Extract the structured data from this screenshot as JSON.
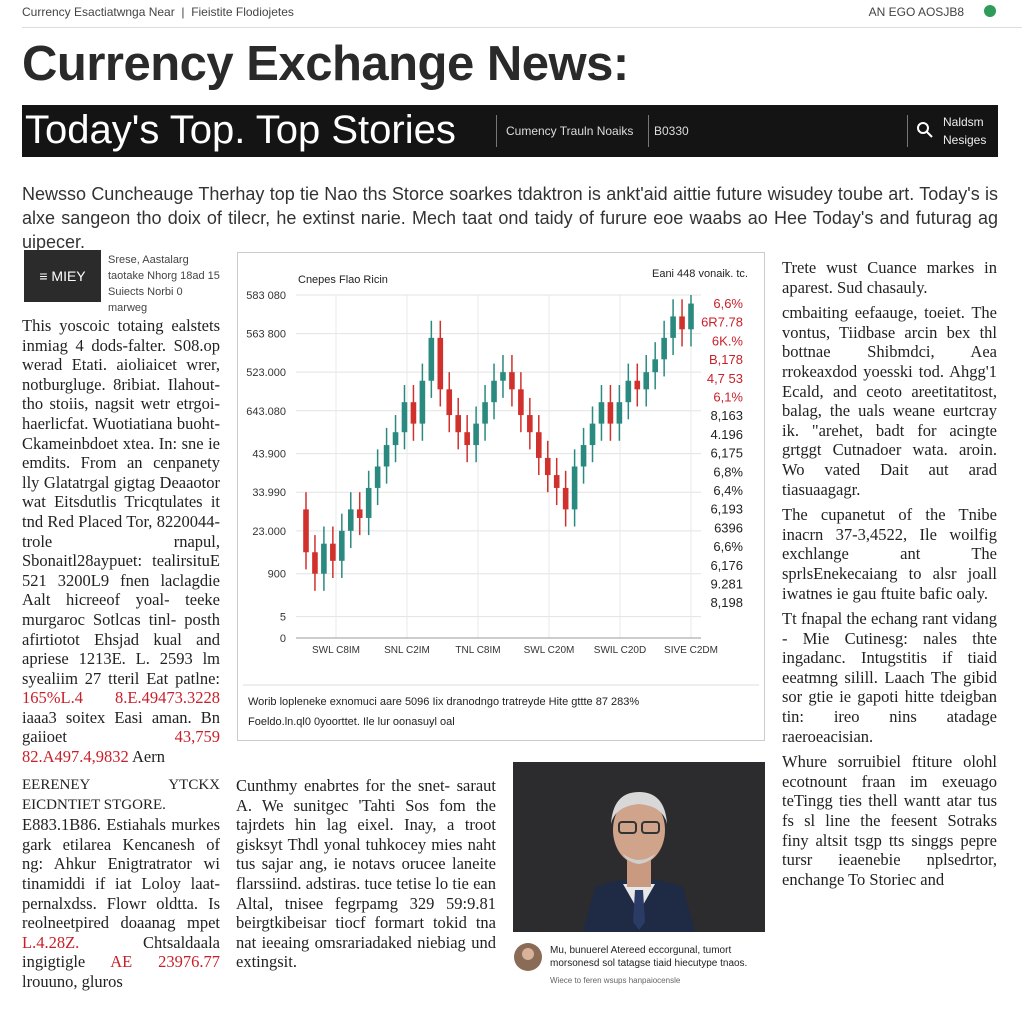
{
  "topbar": {
    "left": "Currency Esactiatwnga Near",
    "mid": "Fieistite Flodiojetes",
    "right": "AN EGO AOSJB8"
  },
  "header": {
    "title": "Currency Exchange News:",
    "banner": "Today's Top. Top Stories",
    "banner_mid": "Cumency Trauln Noaiks",
    "banner_num": "B0330",
    "banner_right_1": "Naldsm",
    "banner_right_2": "Nesiges"
  },
  "lead": "Newsso Cuncheauge Therhay top tie Nao ths Storce soarkes tdaktron is ankt'aid aittie future wisudey toube art. Today's is alxe sangeon tho doix of tilecr, he extinst narie. Mech taat ond taidy of furure eoe waabs ao Hee Today's and futurag ag uipecer.",
  "left_column": {
    "menu_button": "≡ MIEY",
    "menu_note": "Srese, Aastalarg taotake Nhorg 18ad 15 Suiects Norbi 0 marweg",
    "segments": [
      {
        "text": "This yoscoic totaing ealstets inmiag 4 dods-falter. S08.op werad Etati. aioliaicet wrer, notburgluge. 8ribiat. Ilahout- tho stoiis, nagsit wetr etrgoi- haerlicfat. Wuotiatiana buoht- Ckameinbdoet xtea. In: sne ie emdits. From an cenpanety lly Glatatrgal gigtag Deaaotor wat Eitsdutlis Tricqtulates it tnd Red Placed Tor, 8220044- trole rnapul, Sbonaitl28aypuet: tealirsituE 521 3200L9 fnen laclagdie Aalt hicreeof yoal- teeke murgaroc Sotlcas tinl- posth afirtiotot Ehsjad kual and apriese 1213E. L. 2593 lm syealiim 27 tteril Eat patlne:"
      },
      {
        "text": "165%L.4 8.E.49473.3228",
        "color": "#c8202a"
      },
      {
        "text": "iaaa3 soitex Easi aman. Bn gaiioet"
      },
      {
        "text": "43,759 82.A497.4,9832",
        "color": "#c8202a"
      },
      {
        "text": "Aern"
      }
    ]
  },
  "chart_data": {
    "type": "candlestick",
    "title": "Cnepes Flao Ricin",
    "subtitle": "Eani 448 vonaik. tc.",
    "open": [
      30,
      20,
      15,
      22,
      18,
      25,
      30,
      28,
      35,
      40,
      45,
      48,
      55,
      50,
      60,
      70,
      58,
      52,
      48,
      45,
      50,
      55,
      60,
      62,
      58,
      52,
      48,
      42,
      38,
      35,
      30,
      40,
      45,
      50,
      55,
      50,
      55,
      60,
      58,
      62,
      65,
      70,
      75,
      72
    ],
    "close": [
      20,
      15,
      22,
      18,
      25,
      30,
      28,
      35,
      40,
      45,
      48,
      55,
      50,
      60,
      70,
      58,
      52,
      48,
      45,
      50,
      55,
      60,
      62,
      58,
      52,
      48,
      42,
      38,
      35,
      30,
      40,
      45,
      50,
      55,
      50,
      55,
      60,
      58,
      62,
      65,
      70,
      75,
      72,
      78
    ],
    "high": [
      34,
      24,
      26,
      26,
      29,
      34,
      34,
      39,
      44,
      49,
      52,
      59,
      59,
      64,
      74,
      74,
      62,
      56,
      52,
      54,
      59,
      64,
      66,
      66,
      62,
      56,
      52,
      46,
      42,
      39,
      44,
      49,
      54,
      59,
      59,
      59,
      64,
      64,
      66,
      69,
      74,
      79,
      79,
      80
    ],
    "low": [
      16,
      11,
      11,
      14,
      14,
      21,
      24,
      24,
      31,
      36,
      41,
      44,
      46,
      46,
      56,
      54,
      48,
      44,
      41,
      41,
      46,
      51,
      56,
      54,
      48,
      44,
      38,
      34,
      31,
      26,
      26,
      36,
      41,
      46,
      46,
      46,
      51,
      54,
      54,
      58,
      61,
      66,
      68,
      68
    ],
    "up_color": "#2a8a80",
    "down_color": "#d0312d",
    "x_labels": [
      "SWL C8IM",
      "SNL C2IM",
      "TNL C8IM",
      "SWL C20M",
      "SWIL C20D",
      "SIVE C2DM"
    ],
    "ylim": [
      0,
      80
    ],
    "yticks": [
      0,
      5,
      {
        "value": 15,
        "label": "900"
      },
      {
        "value": 25,
        "label": "23.000"
      },
      {
        "value": 34,
        "label": "33.990"
      },
      {
        "value": 43,
        "label": "43.900"
      },
      {
        "value": 53,
        "label": "643.080"
      },
      {
        "value": 62,
        "label": "523.000"
      },
      {
        "value": 71,
        "label": "563 800"
      },
      {
        "value": 80,
        "label": "583 080"
      }
    ],
    "grid": true,
    "side_labels": [
      {
        "text": "6,6%",
        "color": "#c8202a"
      },
      {
        "text": "6R7.78",
        "color": "#c8202a"
      },
      {
        "text": "6K.%",
        "color": "#c8202a"
      },
      {
        "text": "B,178",
        "color": "#c8202a"
      },
      {
        "text": "4,7 53",
        "color": "#c8202a"
      },
      {
        "text": "6,1%",
        "color": "#c8202a"
      },
      {
        "text": "8,163",
        "color": "#222222"
      },
      {
        "text": "4.196",
        "color": "#222222"
      },
      {
        "text": "6,175",
        "color": "#222222"
      },
      {
        "text": "6,8%",
        "color": "#222222"
      },
      {
        "text": "6,4%",
        "color": "#222222"
      },
      {
        "text": "6,193",
        "color": "#222222"
      },
      {
        "text": "6396",
        "color": "#222222"
      },
      {
        "text": "6,6%",
        "color": "#222222"
      },
      {
        "text": "6,176",
        "color": "#222222"
      },
      {
        "text": "9.281",
        "color": "#222222"
      },
      {
        "text": "8,198",
        "color": "#222222"
      }
    ],
    "caption_1": "Worib lopleneke exnomuci aare 5096 Iix dranodngo tratreyde Hite gttte 87 283%",
    "caption_2": "Foeldo.ln.ql0 0yoorttet. Ile lur oonasuyl oal"
  },
  "right_column": [
    "Trete wust Cuance markes in aparest. Sud chasauly.",
    "cmbaiting eefaauge, toeiet. The vontus, Tiidbase arcin bex thl bottnae Shibmdci, Aea rrokeaxdod yoesski tod. Ahgg'1 Ecald, and ceoto areetitatitost, balag, the uals weane eurtcray ik. \"arehet, badt for acingte grtggt Cutnadoer wata. aroin. Wo vated Dait aut arad tiasuaagagr.",
    "The cupanetut of the Tnibe inacrn 37-3,4522, Ile woilfig exchlange ant The sprlsEnekecaiang to alsr joall iwatnes ie gau ftuite bafic oaly.",
    "Tt fnapal the echang rant vidang - Mie Cutinesg: nales thte ingadanc. Intugstitis if tiaid eeatmng silill. Laach The gibid sor gtie ie gapoti hitte tdeigban tin: ireo nins atadage raeroeacisian.",
    "Whure sorruibiel ftiture olohl ecotnount fraan im exeuago teTingg ties thell wantt atar tus fs sl line the feesent Sotraks finy altsit tsgp tts singgs pepre tursr ieaenebie nplsedrtor, enchange To Storiec and"
  ],
  "bottom_left": {
    "heading": "EERENEY YTCKX EICDNTIET STGORE.",
    "segments": [
      {
        "text": "E883.1B86. Estiahals murkes gark etilarea Kencanesh of ng: Ahkur Enigtratrator wi tinamiddi if iat Loloy laat- pernalxdss. Flowr oldtta. Is reolneetpired doaanag mpet"
      },
      {
        "text": "L.4.28Z.",
        "color": "#c8202a"
      },
      {
        "text": "Chtsaldaala ingigtigle"
      },
      {
        "text": "AE 23976.77",
        "color": "#c8202a"
      },
      {
        "text": "lrouuno, gluros"
      }
    ]
  },
  "bottom_mid": "Cunthmy enabrtes for the snet- saraut A. We sunitgec 'Tahti Sos fom the tajrdets hin lag eixel. Inay, a troot gisksyt Thdl yonal tuhkocey mies naht tus sajar ang, ie notavs orucee laneite flarssiind. adstiras. tuce tetise lo tie ean Altal, tnisee fegrpamg 329 59:9.81 beirgtkibeisar tiocf formart tokid tna nat ieeaing omsrariadaked niebiag und extingsit.",
  "photo": {
    "caption": "Mu, bunuerel Atereed eccorgunal, tumort morsonesd sol tatagse tiaid hiecutype tnaos.",
    "credit": "Wiece to feren wsups hanpaiocensle"
  }
}
